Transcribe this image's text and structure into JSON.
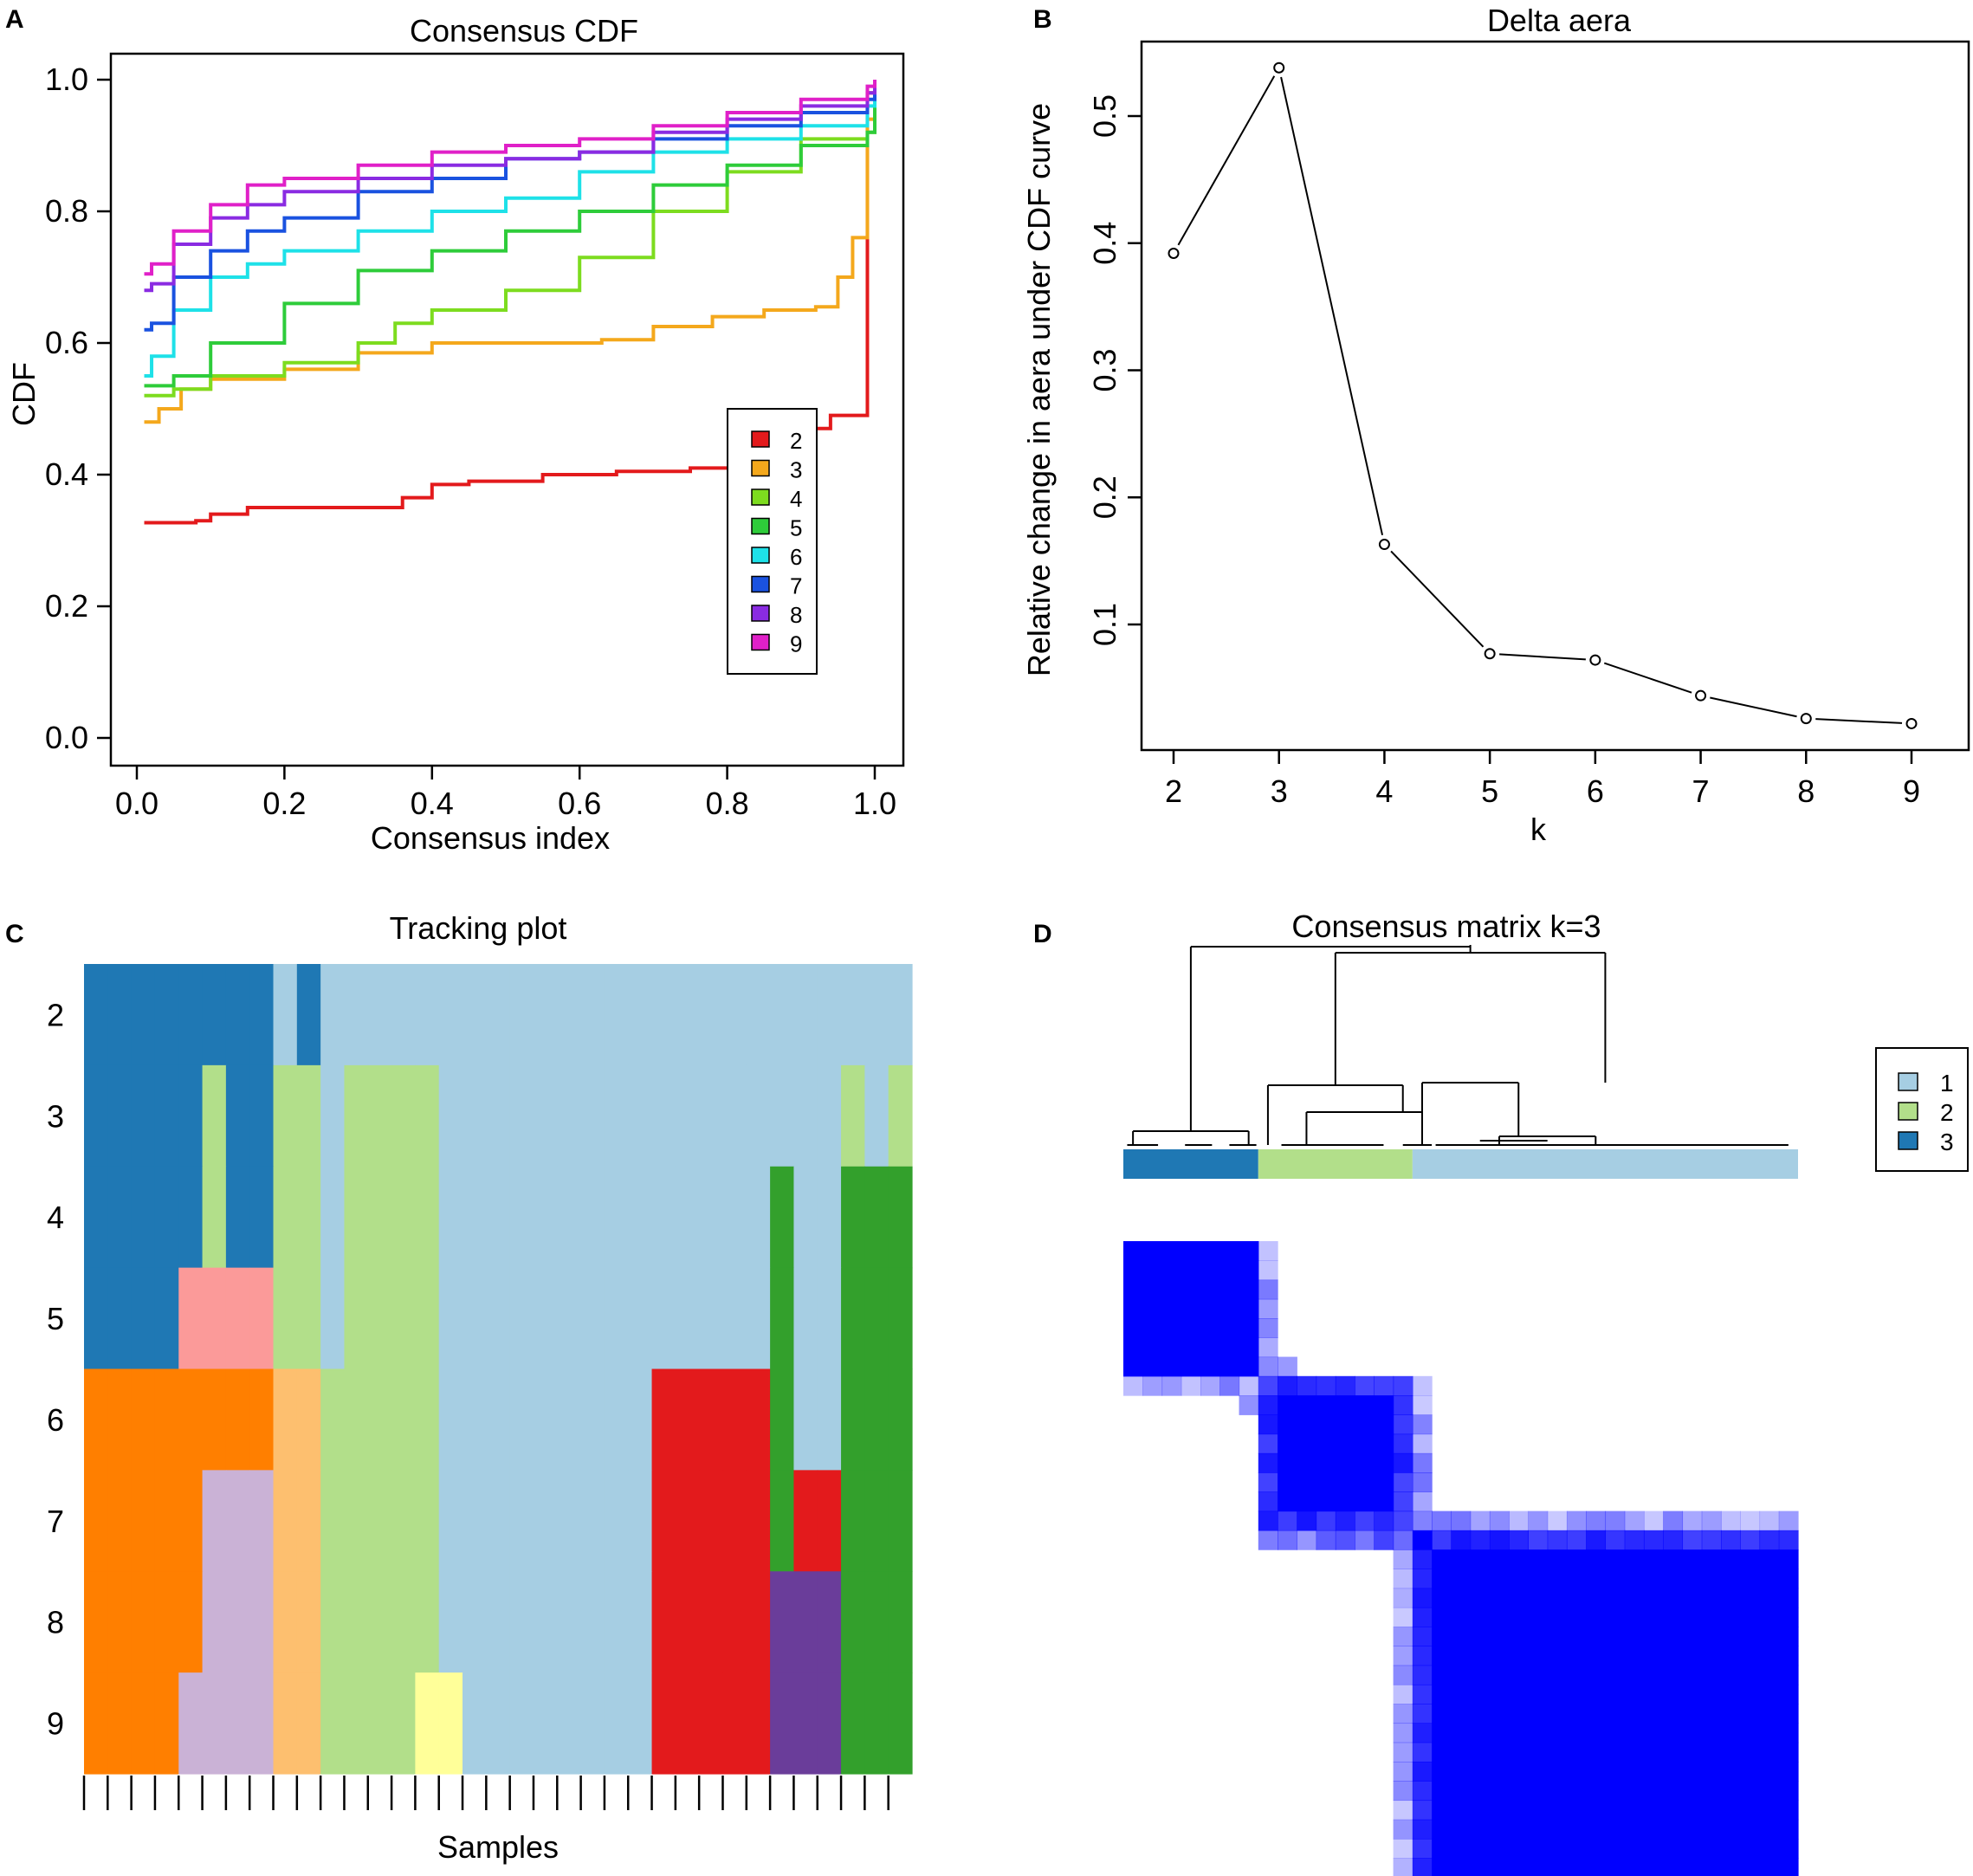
{
  "panels": {
    "a": {
      "letter": "A"
    },
    "b": {
      "letter": "B"
    },
    "c": {
      "letter": "C"
    },
    "d": {
      "letter": "D"
    }
  },
  "chart_data": [
    {
      "type": "line",
      "panel": "A",
      "title": "Consensus CDF",
      "xlabel": "Consensus index",
      "ylabel": "CDF",
      "xlim": [
        0,
        1
      ],
      "ylim": [
        0,
        1
      ],
      "xticks": [
        0.0,
        0.2,
        0.4,
        0.6,
        0.8,
        1.0
      ],
      "xtick_labels": [
        "0.0",
        "0.2",
        "0.4",
        "0.6",
        "0.8",
        "1.0"
      ],
      "yticks": [
        0.0,
        0.2,
        0.4,
        0.6,
        0.8,
        1.0
      ],
      "ytick_labels": [
        "0.0",
        "0.2",
        "0.4",
        "0.6",
        "0.8",
        "1.0"
      ],
      "legend_position": "bottom-right",
      "series": [
        {
          "name": "2",
          "color": "#e31a1c",
          "x": [
            0.01,
            0.08,
            0.1,
            0.15,
            0.25,
            0.33,
            0.36,
            0.4,
            0.45,
            0.55,
            0.65,
            0.75,
            0.85,
            0.88,
            0.94,
            0.98,
            0.99,
            1.0
          ],
          "y": [
            0.327,
            0.33,
            0.34,
            0.35,
            0.35,
            0.35,
            0.365,
            0.385,
            0.39,
            0.4,
            0.405,
            0.41,
            0.415,
            0.47,
            0.49,
            0.49,
            0.98,
            1.0
          ]
        },
        {
          "name": "3",
          "color": "#f4a81c",
          "x": [
            0.01,
            0.03,
            0.06,
            0.1,
            0.2,
            0.3,
            0.4,
            0.5,
            0.6,
            0.63,
            0.7,
            0.78,
            0.85,
            0.9,
            0.92,
            0.95,
            0.97,
            0.99,
            1.0
          ],
          "y": [
            0.48,
            0.5,
            0.53,
            0.545,
            0.56,
            0.585,
            0.6,
            0.6,
            0.6,
            0.605,
            0.625,
            0.64,
            0.65,
            0.65,
            0.655,
            0.7,
            0.76,
            0.94,
            1.0
          ]
        },
        {
          "name": "4",
          "color": "#7ddc1f",
          "x": [
            0.01,
            0.05,
            0.1,
            0.2,
            0.3,
            0.35,
            0.4,
            0.5,
            0.6,
            0.7,
            0.8,
            0.9,
            0.99,
            1.0
          ],
          "y": [
            0.52,
            0.53,
            0.55,
            0.57,
            0.6,
            0.63,
            0.65,
            0.68,
            0.73,
            0.8,
            0.86,
            0.91,
            0.92,
            1.0
          ]
        },
        {
          "name": "5",
          "color": "#2ecc3a",
          "x": [
            0.01,
            0.05,
            0.1,
            0.2,
            0.3,
            0.4,
            0.5,
            0.6,
            0.7,
            0.8,
            0.9,
            0.99,
            1.0
          ],
          "y": [
            0.535,
            0.55,
            0.6,
            0.66,
            0.71,
            0.74,
            0.77,
            0.8,
            0.84,
            0.87,
            0.9,
            0.92,
            1.0
          ]
        },
        {
          "name": "6",
          "color": "#1ee1e8",
          "x": [
            0.01,
            0.02,
            0.05,
            0.1,
            0.15,
            0.2,
            0.3,
            0.4,
            0.5,
            0.6,
            0.7,
            0.8,
            0.9,
            0.99,
            1.0
          ],
          "y": [
            0.55,
            0.58,
            0.65,
            0.7,
            0.72,
            0.74,
            0.77,
            0.8,
            0.82,
            0.86,
            0.89,
            0.91,
            0.93,
            0.96,
            1.0
          ]
        },
        {
          "name": "7",
          "color": "#1a52e0",
          "x": [
            0.01,
            0.02,
            0.05,
            0.1,
            0.15,
            0.2,
            0.3,
            0.4,
            0.5,
            0.6,
            0.7,
            0.8,
            0.9,
            0.99,
            1.0
          ],
          "y": [
            0.62,
            0.63,
            0.7,
            0.74,
            0.77,
            0.79,
            0.83,
            0.85,
            0.88,
            0.89,
            0.91,
            0.93,
            0.95,
            0.97,
            1.0
          ]
        },
        {
          "name": "8",
          "color": "#8a2be2",
          "x": [
            0.01,
            0.02,
            0.05,
            0.1,
            0.15,
            0.2,
            0.3,
            0.4,
            0.5,
            0.6,
            0.7,
            0.8,
            0.9,
            0.99,
            1.0
          ],
          "y": [
            0.68,
            0.69,
            0.75,
            0.79,
            0.81,
            0.83,
            0.85,
            0.87,
            0.88,
            0.89,
            0.92,
            0.94,
            0.96,
            0.98,
            1.0
          ]
        },
        {
          "name": "9",
          "color": "#e020c8",
          "x": [
            0.01,
            0.02,
            0.05,
            0.1,
            0.15,
            0.2,
            0.3,
            0.4,
            0.5,
            0.6,
            0.7,
            0.8,
            0.9,
            0.99,
            1.0
          ],
          "y": [
            0.705,
            0.72,
            0.77,
            0.81,
            0.84,
            0.85,
            0.87,
            0.89,
            0.9,
            0.91,
            0.93,
            0.95,
            0.97,
            0.99,
            1.0
          ]
        }
      ]
    },
    {
      "type": "line",
      "panel": "B",
      "title": "Delta aera",
      "xlabel": "k",
      "ylabel": "Relative change in aera under CDF curve",
      "xlim": [
        2,
        9
      ],
      "ylim": [
        0.02,
        0.54
      ],
      "xticks": [
        2,
        3,
        4,
        5,
        6,
        7,
        8,
        9
      ],
      "xtick_labels": [
        "2",
        "3",
        "4",
        "5",
        "6",
        "7",
        "8",
        "9"
      ],
      "yticks": [
        0.1,
        0.2,
        0.3,
        0.4,
        0.5
      ],
      "ytick_labels": [
        "0.1",
        "0.2",
        "0.3",
        "0.4",
        "0.5"
      ],
      "x": [
        2,
        3,
        4,
        5,
        6,
        7,
        8,
        9
      ],
      "y": [
        0.392,
        0.538,
        0.163,
        0.077,
        0.072,
        0.044,
        0.026,
        0.022
      ]
    },
    {
      "type": "heatmap",
      "panel": "C",
      "title": "Tracking plot",
      "xlabel": "Samples",
      "row_labels": [
        "2",
        "3",
        "4",
        "5",
        "6",
        "7",
        "8",
        "9"
      ],
      "n_samples": 35,
      "rows": [
        [
          "#1f78b4",
          "#1f78b4",
          "#1f78b4",
          "#1f78b4",
          "#1f78b4",
          "#1f78b4",
          "#1f78b4",
          "#1f78b4",
          "#a6cee3",
          "#1f78b4",
          "#a6cee3",
          "#a6cee3",
          "#a6cee3",
          "#a6cee3",
          "#a6cee3",
          "#a6cee3",
          "#a6cee3",
          "#a6cee3",
          "#a6cee3",
          "#a6cee3",
          "#a6cee3",
          "#a6cee3",
          "#a6cee3",
          "#a6cee3",
          "#a6cee3",
          "#a6cee3",
          "#a6cee3",
          "#a6cee3",
          "#a6cee3",
          "#a6cee3",
          "#a6cee3",
          "#a6cee3",
          "#a6cee3",
          "#a6cee3",
          "#a6cee3"
        ],
        [
          "#1f78b4",
          "#1f78b4",
          "#1f78b4",
          "#1f78b4",
          "#1f78b4",
          "#b2df8a",
          "#1f78b4",
          "#1f78b4",
          "#b2df8a",
          "#b2df8a",
          "#a6cee3",
          "#b2df8a",
          "#b2df8a",
          "#b2df8a",
          "#b2df8a",
          "#a6cee3",
          "#a6cee3",
          "#a6cee3",
          "#a6cee3",
          "#a6cee3",
          "#a6cee3",
          "#a6cee3",
          "#a6cee3",
          "#a6cee3",
          "#a6cee3",
          "#a6cee3",
          "#a6cee3",
          "#a6cee3",
          "#a6cee3",
          "#a6cee3",
          "#a6cee3",
          "#a6cee3",
          "#b2df8a",
          "#a6cee3",
          "#b2df8a"
        ],
        [
          "#1f78b4",
          "#1f78b4",
          "#1f78b4",
          "#1f78b4",
          "#1f78b4",
          "#b2df8a",
          "#1f78b4",
          "#1f78b4",
          "#b2df8a",
          "#b2df8a",
          "#a6cee3",
          "#b2df8a",
          "#b2df8a",
          "#b2df8a",
          "#b2df8a",
          "#a6cee3",
          "#a6cee3",
          "#a6cee3",
          "#a6cee3",
          "#a6cee3",
          "#a6cee3",
          "#a6cee3",
          "#a6cee3",
          "#a6cee3",
          "#a6cee3",
          "#a6cee3",
          "#a6cee3",
          "#a6cee3",
          "#a6cee3",
          "#33a02c",
          "#a6cee3",
          "#a6cee3",
          "#33a02c",
          "#33a02c",
          "#33a02c"
        ],
        [
          "#1f78b4",
          "#1f78b4",
          "#1f78b4",
          "#1f78b4",
          "#fb9a99",
          "#fb9a99",
          "#fb9a99",
          "#fb9a99",
          "#b2df8a",
          "#b2df8a",
          "#a6cee3",
          "#b2df8a",
          "#b2df8a",
          "#b2df8a",
          "#b2df8a",
          "#a6cee3",
          "#a6cee3",
          "#a6cee3",
          "#a6cee3",
          "#a6cee3",
          "#a6cee3",
          "#a6cee3",
          "#a6cee3",
          "#a6cee3",
          "#a6cee3",
          "#a6cee3",
          "#a6cee3",
          "#a6cee3",
          "#a6cee3",
          "#33a02c",
          "#a6cee3",
          "#a6cee3",
          "#33a02c",
          "#33a02c",
          "#33a02c"
        ],
        [
          "#ff7f00",
          "#ff7f00",
          "#ff7f00",
          "#ff7f00",
          "#ff7f00",
          "#ff7f00",
          "#ff7f00",
          "#ff7f00",
          "#fdbf6f",
          "#fdbf6f",
          "#b2df8a",
          "#b2df8a",
          "#b2df8a",
          "#b2df8a",
          "#b2df8a",
          "#a6cee3",
          "#a6cee3",
          "#a6cee3",
          "#a6cee3",
          "#a6cee3",
          "#a6cee3",
          "#a6cee3",
          "#a6cee3",
          "#a6cee3",
          "#e31a1c",
          "#e31a1c",
          "#e31a1c",
          "#e31a1c",
          "#e31a1c",
          "#33a02c",
          "#a6cee3",
          "#a6cee3",
          "#33a02c",
          "#33a02c",
          "#33a02c"
        ],
        [
          "#ff7f00",
          "#ff7f00",
          "#ff7f00",
          "#ff7f00",
          "#ff7f00",
          "#cab2d6",
          "#cab2d6",
          "#cab2d6",
          "#fdbf6f",
          "#fdbf6f",
          "#b2df8a",
          "#b2df8a",
          "#b2df8a",
          "#b2df8a",
          "#b2df8a",
          "#a6cee3",
          "#a6cee3",
          "#a6cee3",
          "#a6cee3",
          "#a6cee3",
          "#a6cee3",
          "#a6cee3",
          "#a6cee3",
          "#a6cee3",
          "#e31a1c",
          "#e31a1c",
          "#e31a1c",
          "#e31a1c",
          "#e31a1c",
          "#33a02c",
          "#e31a1c",
          "#e31a1c",
          "#33a02c",
          "#33a02c",
          "#33a02c"
        ],
        [
          "#ff7f00",
          "#ff7f00",
          "#ff7f00",
          "#ff7f00",
          "#ff7f00",
          "#cab2d6",
          "#cab2d6",
          "#cab2d6",
          "#fdbf6f",
          "#fdbf6f",
          "#b2df8a",
          "#b2df8a",
          "#b2df8a",
          "#b2df8a",
          "#b2df8a",
          "#a6cee3",
          "#a6cee3",
          "#a6cee3",
          "#a6cee3",
          "#a6cee3",
          "#a6cee3",
          "#a6cee3",
          "#a6cee3",
          "#a6cee3",
          "#e31a1c",
          "#e31a1c",
          "#e31a1c",
          "#e31a1c",
          "#e31a1c",
          "#6a3d9a",
          "#6a3d9a",
          "#6a3d9a",
          "#33a02c",
          "#33a02c",
          "#33a02c"
        ],
        [
          "#ff7f00",
          "#ff7f00",
          "#ff7f00",
          "#ff7f00",
          "#cab2d6",
          "#cab2d6",
          "#cab2d6",
          "#cab2d6",
          "#fdbf6f",
          "#fdbf6f",
          "#b2df8a",
          "#b2df8a",
          "#b2df8a",
          "#b2df8a",
          "#ffff99",
          "#ffff99",
          "#a6cee3",
          "#a6cee3",
          "#a6cee3",
          "#a6cee3",
          "#a6cee3",
          "#a6cee3",
          "#a6cee3",
          "#a6cee3",
          "#e31a1c",
          "#e31a1c",
          "#e31a1c",
          "#e31a1c",
          "#e31a1c",
          "#6a3d9a",
          "#6a3d9a",
          "#6a3d9a",
          "#33a02c",
          "#33a02c",
          "#33a02c"
        ]
      ]
    },
    {
      "type": "heatmap",
      "panel": "D",
      "title": "Consensus matrix k=3",
      "legend_entries": [
        {
          "label": "1",
          "color": "#a6cee3"
        },
        {
          "label": "2",
          "color": "#b2df8a"
        },
        {
          "label": "3",
          "color": "#1f78b4"
        }
      ],
      "cluster_order": [
        "3",
        "2",
        "1"
      ],
      "cluster_sizes": [
        7,
        8,
        20
      ],
      "n_samples": 35,
      "consensus_color": "#0000ff"
    }
  ]
}
